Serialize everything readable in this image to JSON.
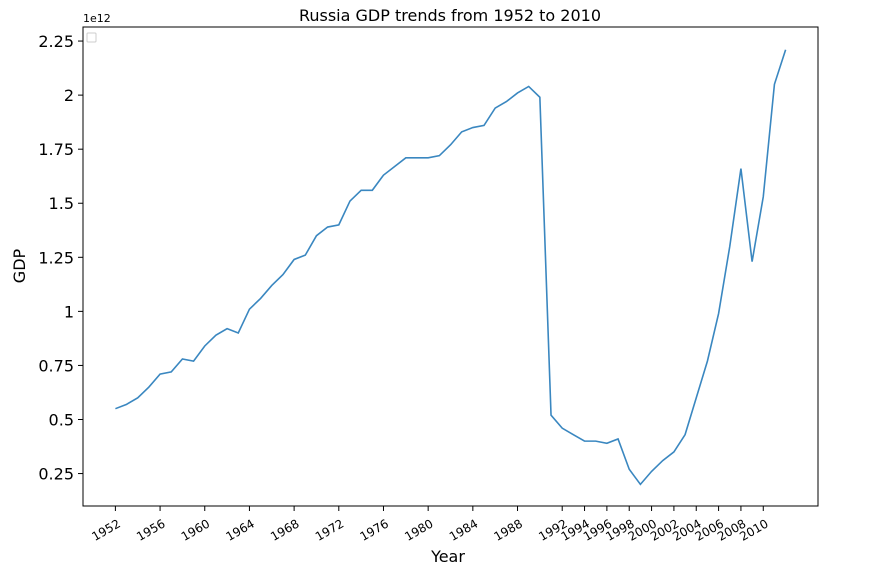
{
  "chart_data": {
    "type": "line",
    "title": "Russia GDP trends from 1952 to 2010",
    "x_label": "Year",
    "y_label": "GDP",
    "y_offset_label": "1e12",
    "x": [
      1952,
      1953,
      1954,
      1955,
      1956,
      1957,
      1958,
      1959,
      1960,
      1961,
      1962,
      1963,
      1964,
      1965,
      1966,
      1967,
      1968,
      1969,
      1970,
      1971,
      1972,
      1973,
      1974,
      1975,
      1976,
      1977,
      1978,
      1979,
      1980,
      1981,
      1982,
      1983,
      1984,
      1985,
      1986,
      1987,
      1988,
      1989,
      1990,
      1991,
      1992,
      1993,
      1994,
      1995,
      1996,
      1997,
      1998,
      1999,
      2000,
      2001,
      2002,
      2003,
      2004,
      2005,
      2006,
      2007,
      2008,
      2009,
      2010,
      2011,
      2012
    ],
    "series": [
      {
        "color": "#3a87c0",
        "values": [
          0.55,
          0.57,
          0.6,
          0.65,
          0.71,
          0.72,
          0.78,
          0.77,
          0.84,
          0.89,
          0.92,
          0.9,
          1.01,
          1.06,
          1.12,
          1.17,
          1.24,
          1.26,
          1.35,
          1.39,
          1.4,
          1.51,
          1.56,
          1.56,
          1.63,
          1.67,
          1.71,
          1.71,
          1.71,
          1.72,
          1.77,
          1.83,
          1.85,
          1.86,
          1.94,
          1.97,
          2.01,
          2.04,
          1.99,
          0.52,
          0.46,
          0.43,
          0.4,
          0.4,
          0.39,
          0.41,
          0.27,
          0.2,
          0.26,
          0.31,
          0.35,
          0.43,
          0.6,
          0.77,
          0.99,
          1.3,
          1.66,
          1.23,
          1.53,
          2.05,
          2.21
        ]
      }
    ],
    "xlim": [
      1949.1,
      2014.9
    ],
    "ylim": [
      0.1,
      2.315
    ],
    "xticks": [
      1952,
      1956,
      1960,
      1964,
      1968,
      1972,
      1976,
      1980,
      1984,
      1988,
      1992,
      1994,
      1996,
      1998,
      2000,
      2002,
      2004,
      2006,
      2008,
      2010
    ],
    "yticks": [
      0.25,
      0.5,
      0.75,
      1.0,
      1.25,
      1.5,
      1.75,
      2.0,
      2.25
    ]
  }
}
